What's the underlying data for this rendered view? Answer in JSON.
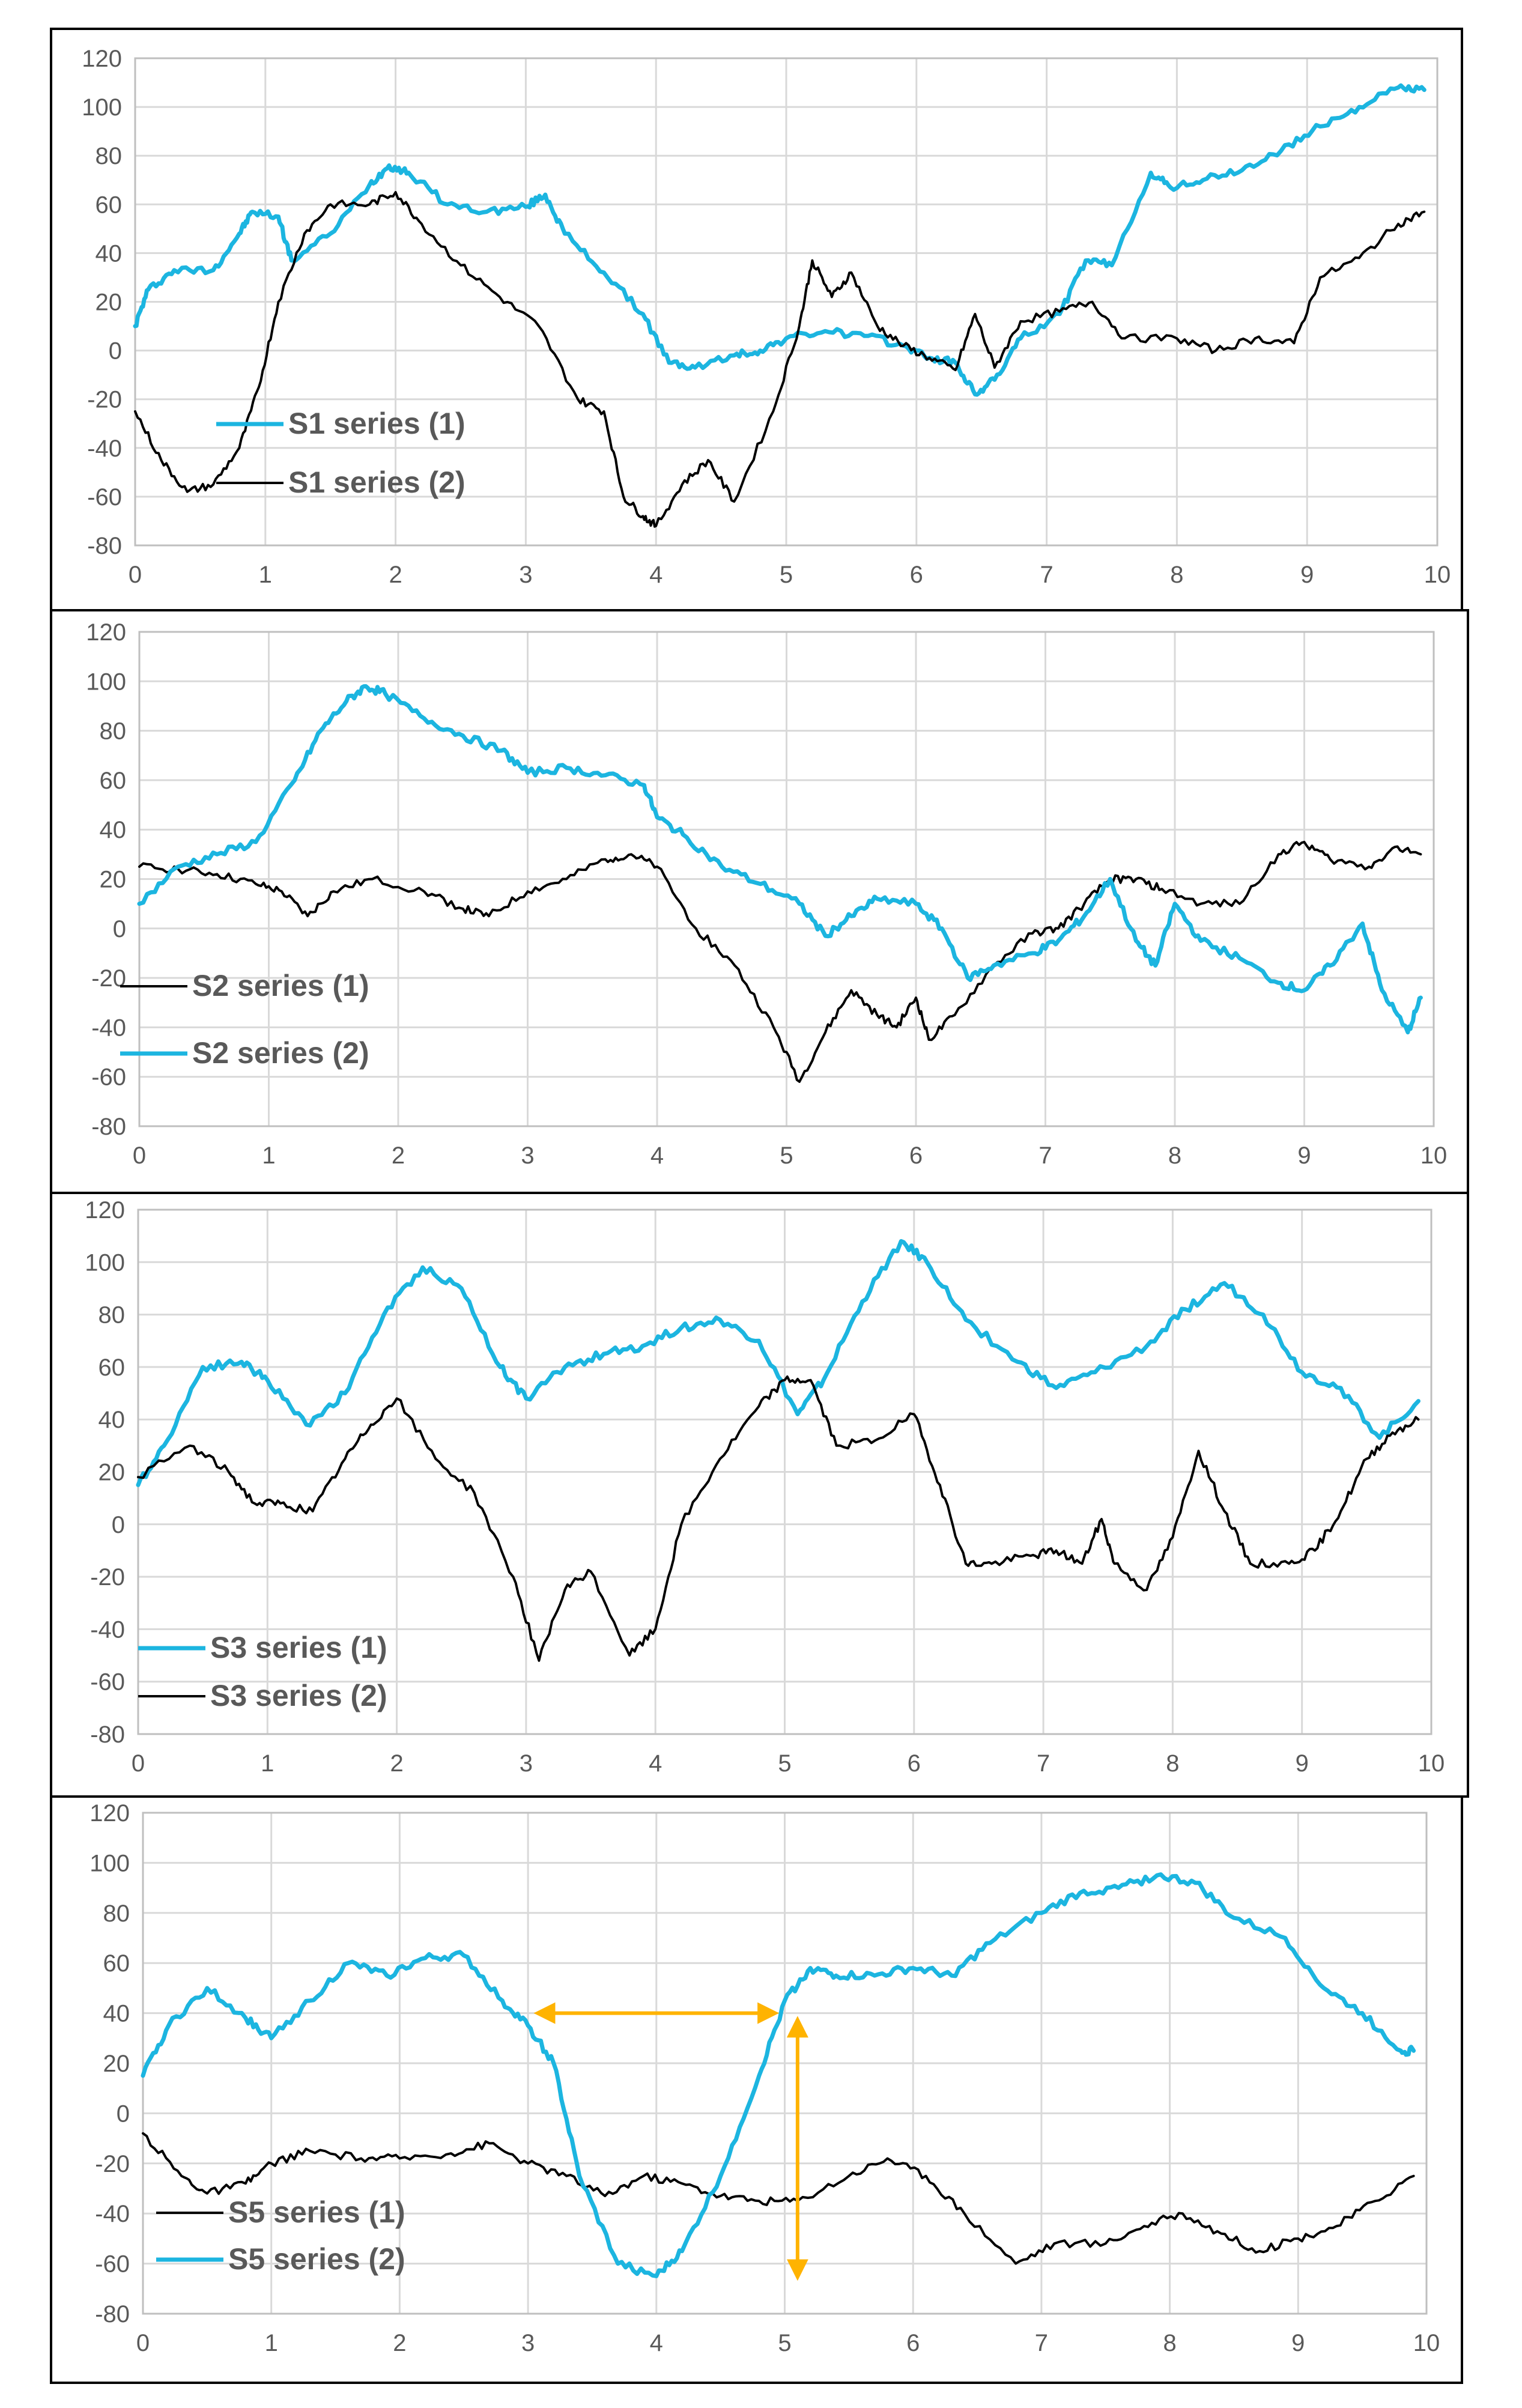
{
  "colors": {
    "series_blue": "#1cb5e0",
    "series_black": "#000000",
    "arrow": "#ffb300",
    "grid": "#d9d9d9",
    "frame": "#000000",
    "tick_text": "#595959"
  },
  "chart_data": [
    {
      "type": "line",
      "xlim": [
        0,
        10
      ],
      "ylim": [
        -80,
        120
      ],
      "xticks": [
        "0",
        "1",
        "2",
        "3",
        "4",
        "5",
        "6",
        "7",
        "8",
        "9",
        "10"
      ],
      "yticks": [
        "120",
        "100",
        "80",
        "60",
        "40",
        "20",
        "0",
        "-20",
        "-40",
        "-60",
        "-80"
      ],
      "legend_position": "lower-left",
      "series": [
        {
          "name": "S1 series (1)",
          "color": "#1cb5e0",
          "x": [
            0,
            0.1,
            0.3,
            0.6,
            0.8,
            0.9,
            1.1,
            1.2,
            1.5,
            1.8,
            1.95,
            2.1,
            2.4,
            2.7,
            3.0,
            3.15,
            3.3,
            3.6,
            3.9,
            4.1,
            4.3,
            4.6,
            4.8,
            5.0,
            5.3,
            5.6,
            5.9,
            6.1,
            6.3,
            6.45,
            6.6,
            6.8,
            7.1,
            7.3,
            7.5,
            7.8,
            7.95,
            8.2,
            8.5,
            8.8,
            9.1,
            9.4,
            9.7,
            9.9
          ],
          "y": [
            10,
            25,
            33,
            33,
            48,
            57,
            55,
            37,
            48,
            68,
            76,
            73,
            60,
            57,
            59,
            64,
            48,
            32,
            15,
            -5,
            -7,
            -2,
            0,
            5,
            8,
            6,
            2,
            -3,
            -5,
            -18,
            -12,
            5,
            15,
            37,
            35,
            73,
            67,
            70,
            74,
            82,
            92,
            100,
            108,
            107
          ]
        },
        {
          "name": "S1 series (2)",
          "color": "#000000",
          "x": [
            0,
            0.2,
            0.4,
            0.6,
            0.8,
            0.95,
            1.1,
            1.3,
            1.5,
            1.8,
            2.0,
            2.2,
            2.5,
            2.8,
            3.1,
            3.4,
            3.6,
            3.75,
            3.9,
            4.0,
            4.2,
            4.4,
            4.6,
            4.9,
            5.1,
            5.2,
            5.35,
            5.5,
            5.7,
            5.9,
            6.1,
            6.3,
            6.45,
            6.6,
            6.8,
            7.1,
            7.35,
            7.6,
            8.0,
            8.3,
            8.6,
            8.9,
            9.1,
            9.4,
            9.7,
            9.9
          ],
          "y": [
            -25,
            -45,
            -58,
            -55,
            -40,
            -15,
            20,
            48,
            60,
            60,
            65,
            52,
            35,
            22,
            10,
            -20,
            -25,
            -60,
            -68,
            -72,
            -55,
            -45,
            -62,
            -25,
            10,
            37,
            22,
            32,
            10,
            2,
            -3,
            -8,
            15,
            -7,
            12,
            16,
            20,
            5,
            5,
            0,
            5,
            3,
            30,
            38,
            52,
            57
          ]
        }
      ]
    },
    {
      "type": "line",
      "xlim": [
        0,
        10
      ],
      "ylim": [
        -80,
        120
      ],
      "xticks": [
        "0",
        "1",
        "2",
        "3",
        "4",
        "5",
        "6",
        "7",
        "8",
        "9",
        "10"
      ],
      "yticks": [
        "120",
        "100",
        "80",
        "60",
        "40",
        "20",
        "0",
        "-20",
        "-40",
        "-60",
        "-80"
      ],
      "legend_position": "lower-left",
      "series": [
        {
          "name": "S2 series (1)",
          "color": "#000000",
          "x": [
            0,
            0.3,
            0.6,
            0.9,
            1.1,
            1.3,
            1.5,
            1.8,
            2.2,
            2.5,
            2.7,
            3.0,
            3.3,
            3.6,
            3.8,
            4.0,
            4.3,
            4.6,
            4.9,
            5.1,
            5.3,
            5.5,
            5.7,
            5.85,
            6.0,
            6.1,
            6.3,
            6.6,
            6.9,
            7.1,
            7.3,
            7.5,
            7.7,
            7.9,
            8.2,
            8.5,
            8.8,
            9.0,
            9.2,
            9.5,
            9.7,
            9.9
          ],
          "y": [
            25,
            24,
            22,
            18,
            15,
            5,
            15,
            20,
            15,
            8,
            5,
            15,
            20,
            28,
            30,
            25,
            0,
            -15,
            -40,
            -62,
            -42,
            -25,
            -35,
            -40,
            -28,
            -45,
            -35,
            -15,
            -2,
            0,
            10,
            20,
            20,
            16,
            10,
            10,
            30,
            35,
            28,
            25,
            33,
            30
          ]
        },
        {
          "name": "S2 series (2)",
          "color": "#1cb5e0",
          "x": [
            0,
            0.3,
            0.6,
            0.9,
            1.2,
            1.4,
            1.6,
            1.75,
            1.9,
            2.2,
            2.5,
            2.8,
            3.0,
            3.3,
            3.6,
            3.9,
            4.0,
            4.2,
            4.5,
            4.8,
            5.1,
            5.3,
            5.5,
            5.7,
            6.0,
            6.2,
            6.4,
            6.6,
            6.9,
            7.1,
            7.3,
            7.5,
            7.7,
            7.85,
            8.0,
            8.2,
            8.5,
            8.8,
            9.0,
            9.2,
            9.45,
            9.6,
            9.8,
            9.9
          ],
          "y": [
            10,
            25,
            30,
            35,
            60,
            80,
            92,
            98,
            95,
            85,
            78,
            72,
            63,
            65,
            62,
            58,
            45,
            38,
            25,
            18,
            10,
            -3,
            5,
            12,
            10,
            0,
            -20,
            -15,
            -10,
            -5,
            5,
            20,
            -5,
            -15,
            10,
            -5,
            -12,
            -22,
            -25,
            -15,
            2,
            -25,
            -42,
            -28
          ]
        }
      ]
    },
    {
      "type": "line",
      "xlim": [
        0,
        10
      ],
      "ylim": [
        -80,
        120
      ],
      "xticks": [
        "0",
        "1",
        "2",
        "3",
        "4",
        "5",
        "6",
        "7",
        "8",
        "9",
        "10"
      ],
      "yticks": [
        "120",
        "100",
        "80",
        "60",
        "40",
        "20",
        "0",
        "-20",
        "-40",
        "-60",
        "-80"
      ],
      "legend_position": "lower-left",
      "series": [
        {
          "name": "S3 series (1)",
          "color": "#1cb5e0",
          "x": [
            0,
            0.2,
            0.5,
            0.8,
            1.0,
            1.3,
            1.6,
            1.9,
            2.2,
            2.5,
            2.8,
            3.0,
            3.3,
            3.6,
            3.9,
            4.2,
            4.5,
            4.8,
            5.1,
            5.3,
            5.6,
            5.9,
            6.1,
            6.4,
            6.8,
            7.1,
            7.4,
            7.8,
            8.1,
            8.4,
            8.7,
            9.0,
            9.3,
            9.6,
            9.9
          ],
          "y": [
            15,
            30,
            60,
            62,
            55,
            38,
            50,
            80,
            98,
            90,
            60,
            48,
            60,
            65,
            68,
            75,
            78,
            70,
            42,
            55,
            85,
            108,
            100,
            78,
            62,
            52,
            58,
            68,
            82,
            92,
            80,
            58,
            52,
            33,
            47
          ]
        },
        {
          "name": "S3 series (2)",
          "color": "#000000",
          "x": [
            0,
            0.4,
            0.7,
            0.9,
            1.1,
            1.35,
            1.6,
            1.8,
            2.0,
            2.3,
            2.6,
            2.9,
            3.1,
            3.3,
            3.5,
            3.8,
            4.0,
            4.2,
            4.5,
            4.8,
            5.0,
            5.2,
            5.4,
            5.7,
            6.0,
            6.2,
            6.4,
            6.6,
            6.9,
            7.1,
            7.3,
            7.45,
            7.55,
            7.8,
            8.0,
            8.2,
            8.4,
            8.6,
            8.9,
            9.1,
            9.3,
            9.5,
            9.7,
            9.9
          ],
          "y": [
            18,
            30,
            20,
            8,
            8,
            5,
            25,
            38,
            48,
            25,
            12,
            -20,
            -52,
            -25,
            -18,
            -50,
            -40,
            0,
            25,
            45,
            55,
            55,
            30,
            32,
            42,
            15,
            -15,
            -15,
            -12,
            -10,
            -15,
            2,
            -15,
            -25,
            -5,
            28,
            5,
            -15,
            -15,
            -10,
            5,
            25,
            35,
            40
          ]
        }
      ]
    },
    {
      "type": "line",
      "xlim": [
        0,
        10
      ],
      "ylim": [
        -80,
        120
      ],
      "xticks": [
        "0",
        "1",
        "2",
        "3",
        "4",
        "5",
        "6",
        "7",
        "8",
        "9",
        "10"
      ],
      "yticks": [
        "120",
        "100",
        "80",
        "60",
        "40",
        "20",
        "0",
        "-20",
        "-40",
        "-60",
        "-80"
      ],
      "legend_position": "lower-left",
      "annotations": [
        "horizontal double arrow from x=3.1 to x=4.9 at y=40",
        "vertical double arrow at x=5.1 from y=36 to y=-64"
      ],
      "arrows": [
        {
          "x1": 3.1,
          "y1": 40,
          "x2": 4.9,
          "y2": 40
        },
        {
          "x1": 5.1,
          "y1": 36,
          "x2": 5.1,
          "y2": -64
        }
      ],
      "series": [
        {
          "name": "S5 series (1)",
          "color": "#000000",
          "x": [
            0,
            0.3,
            0.5,
            0.8,
            1.0,
            1.3,
            1.7,
            2.0,
            2.4,
            2.7,
            3.0,
            3.3,
            3.6,
            3.9,
            4.2,
            4.5,
            4.8,
            5.1,
            5.5,
            5.8,
            6.1,
            6.4,
            6.8,
            7.1,
            7.5,
            7.8,
            8.1,
            8.4,
            8.7,
            9.0,
            9.3,
            9.6,
            9.9
          ],
          "y": [
            -8,
            -25,
            -32,
            -28,
            -20,
            -15,
            -18,
            -18,
            -16,
            -12,
            -20,
            -25,
            -33,
            -25,
            -28,
            -33,
            -35,
            -35,
            -25,
            -18,
            -25,
            -40,
            -60,
            -52,
            -52,
            -45,
            -40,
            -48,
            -55,
            -50,
            -45,
            -35,
            -25
          ]
        },
        {
          "name": "S5 series (2)",
          "color": "#1cb5e0",
          "x": [
            0,
            0.2,
            0.5,
            0.8,
            1.0,
            1.3,
            1.6,
            1.9,
            2.2,
            2.5,
            2.8,
            3.0,
            3.2,
            3.4,
            3.7,
            4.0,
            4.2,
            4.5,
            4.8,
            5.0,
            5.2,
            5.4,
            5.7,
            6.0,
            6.3,
            6.6,
            7.0,
            7.3,
            7.6,
            7.9,
            8.2,
            8.5,
            8.9,
            9.2,
            9.5,
            9.8,
            9.9
          ],
          "y": [
            15,
            35,
            50,
            38,
            30,
            45,
            60,
            55,
            62,
            63,
            45,
            35,
            20,
            -25,
            -60,
            -65,
            -55,
            -25,
            15,
            45,
            58,
            55,
            55,
            58,
            55,
            68,
            80,
            88,
            90,
            95,
            92,
            78,
            70,
            50,
            40,
            25,
            25
          ]
        }
      ]
    }
  ]
}
